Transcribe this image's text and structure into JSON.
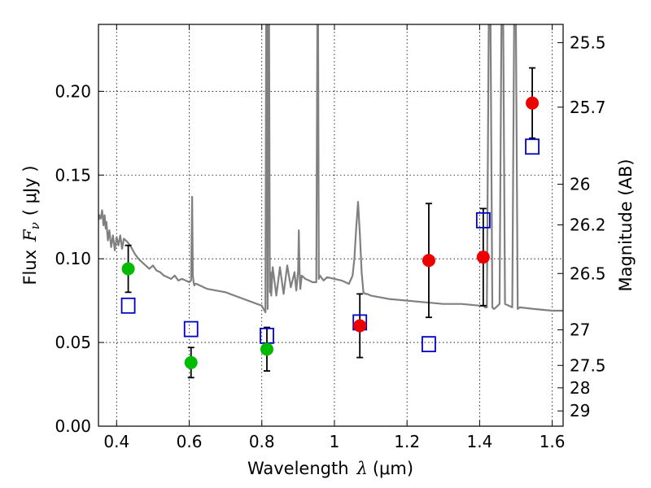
{
  "chart_data": {
    "type": "scatter",
    "xlabel_text": "Wavelength",
    "xlabel_symbol": "λ",
    "xlabel_unit": "(μm)",
    "ylabel_text": "Flux",
    "ylabel_symbol": "F",
    "ylabel_symbol_sub": "ν",
    "ylabel_unit": "( μJy )",
    "y2label": "Magnitude (AB)",
    "xlim": [
      0.35,
      1.63
    ],
    "ylim": [
      0.0,
      0.24
    ],
    "grid": true,
    "x_ticks": [
      {
        "value": 0.4,
        "label": "0.4"
      },
      {
        "value": 0.6,
        "label": "0.6"
      },
      {
        "value": 0.8,
        "label": "0.8"
      },
      {
        "value": 1.0,
        "label": "1"
      },
      {
        "value": 1.2,
        "label": "1.2"
      },
      {
        "value": 1.4,
        "label": "1.4"
      },
      {
        "value": 1.6,
        "label": "1.6"
      }
    ],
    "y_ticks": [
      {
        "value": 0.0,
        "label": "0.00"
      },
      {
        "value": 0.05,
        "label": "0.05"
      },
      {
        "value": 0.1,
        "label": "0.10"
      },
      {
        "value": 0.15,
        "label": "0.15"
      },
      {
        "value": 0.2,
        "label": "0.20"
      }
    ],
    "mag_ticks": [
      {
        "value": 25.5,
        "label": "25.5"
      },
      {
        "value": 25.7,
        "label": "25.7"
      },
      {
        "value": 26.0,
        "label": "26"
      },
      {
        "value": 26.2,
        "label": "26.2"
      },
      {
        "value": 26.5,
        "label": "26.5"
      },
      {
        "value": 27.0,
        "label": "27"
      },
      {
        "value": 27.5,
        "label": "27.5"
      },
      {
        "value": 28.0,
        "label": "28"
      },
      {
        "value": 29.0,
        "label": "29"
      }
    ],
    "series": [
      {
        "kind": "model_spectrum",
        "color": "#808080",
        "x": [
          0.35,
          0.352,
          0.356,
          0.36,
          0.364,
          0.367,
          0.37,
          0.372,
          0.376,
          0.38,
          0.385,
          0.39,
          0.395,
          0.4,
          0.405,
          0.41,
          0.415,
          0.42,
          0.43,
          0.44,
          0.45,
          0.46,
          0.47,
          0.48,
          0.49,
          0.5,
          0.51,
          0.52,
          0.53,
          0.54,
          0.55,
          0.56,
          0.57,
          0.58,
          0.59,
          0.6,
          0.605,
          0.608,
          0.61,
          0.612,
          0.614,
          0.616,
          0.62,
          0.63,
          0.65,
          0.7,
          0.75,
          0.8,
          0.81,
          0.812,
          0.814,
          0.816,
          0.818,
          0.82,
          0.822,
          0.824,
          0.826,
          0.83,
          0.84,
          0.85,
          0.86,
          0.87,
          0.88,
          0.89,
          0.895,
          0.9,
          0.902,
          0.904,
          0.906,
          0.91,
          0.92,
          0.93,
          0.94,
          0.945,
          0.95,
          0.953,
          0.955,
          0.957,
          0.96,
          0.97,
          0.98,
          1.0,
          1.02,
          1.04,
          1.05,
          1.055,
          1.06,
          1.065,
          1.07,
          1.075,
          1.08,
          1.085,
          1.09,
          1.1,
          1.15,
          1.2,
          1.25,
          1.3,
          1.35,
          1.4,
          1.41,
          1.415,
          1.42,
          1.425,
          1.43,
          1.435,
          1.44,
          1.45,
          1.455,
          1.46,
          1.465,
          1.47,
          1.48,
          1.49,
          1.495,
          1.5,
          1.505,
          1.51,
          1.55,
          1.6,
          1.63
        ],
        "y": [
          0.123,
          0.126,
          0.124,
          0.129,
          0.12,
          0.126,
          0.118,
          0.122,
          0.111,
          0.117,
          0.107,
          0.114,
          0.105,
          0.113,
          0.108,
          0.114,
          0.106,
          0.112,
          0.11,
          0.107,
          0.103,
          0.1,
          0.098,
          0.096,
          0.094,
          0.096,
          0.093,
          0.092,
          0.09,
          0.089,
          0.088,
          0.09,
          0.087,
          0.088,
          0.087,
          0.086,
          0.087,
          0.137,
          0.09,
          0.086,
          0.084,
          0.085,
          0.085,
          0.084,
          0.082,
          0.08,
          0.076,
          0.072,
          0.068,
          0.24,
          0.24,
          0.07,
          0.24,
          0.24,
          0.08,
          0.092,
          0.078,
          0.095,
          0.078,
          0.095,
          0.079,
          0.096,
          0.083,
          0.092,
          0.081,
          0.093,
          0.117,
          0.093,
          0.082,
          0.09,
          0.088,
          0.087,
          0.086,
          0.086,
          0.086,
          0.24,
          0.24,
          0.088,
          0.09,
          0.087,
          0.089,
          0.088,
          0.087,
          0.085,
          0.09,
          0.1,
          0.118,
          0.134,
          0.115,
          0.092,
          0.08,
          0.079,
          0.079,
          0.078,
          0.076,
          0.075,
          0.074,
          0.073,
          0.073,
          0.072,
          0.072,
          0.071,
          0.071,
          0.24,
          0.24,
          0.071,
          0.07,
          0.072,
          0.073,
          0.24,
          0.24,
          0.073,
          0.072,
          0.071,
          0.24,
          0.24,
          0.07,
          0.071,
          0.07,
          0.069,
          0.069
        ]
      },
      {
        "kind": "observed_green",
        "color": "#00bb00",
        "x": [
          0.432,
          0.605,
          0.814
        ],
        "y": [
          0.094,
          0.038,
          0.046
        ],
        "yerr": [
          0.014,
          0.009,
          0.013
        ]
      },
      {
        "kind": "observed_red",
        "color": "#ee0000",
        "x": [
          1.07,
          1.26,
          1.41,
          1.545
        ],
        "y": [
          0.06,
          0.099,
          0.101,
          0.193
        ],
        "yerr": [
          0.019,
          0.034,
          0.029,
          0.021
        ]
      },
      {
        "kind": "model_photometry",
        "color": "#0000cc",
        "x": [
          0.432,
          0.605,
          0.814,
          1.07,
          1.26,
          1.41,
          1.545
        ],
        "y": [
          0.072,
          0.058,
          0.054,
          0.062,
          0.049,
          0.123,
          0.167
        ]
      }
    ]
  }
}
